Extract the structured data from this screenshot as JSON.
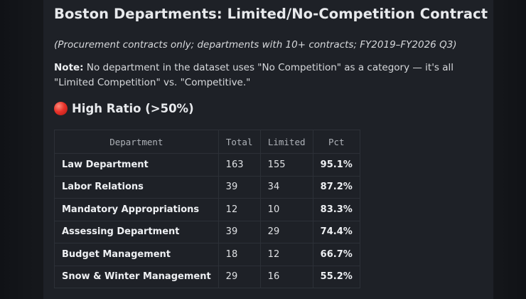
{
  "title": "Boston Departments: Limited/No-Competition Contract Ratio",
  "subtitle": "(Procurement contracts only; departments with 10+ contracts; FY2019–FY2026 Q3)",
  "note": {
    "label": "Note:",
    "text": " No department in the dataset uses \"No Competition\" as a category — it's all \"Limited Competition\" vs. \"Competitive.\""
  },
  "section": {
    "icon": "red-circle-icon",
    "heading": "High Ratio (>50%)"
  },
  "table": {
    "headers": [
      "Department",
      "Total",
      "Limited",
      "Pct"
    ],
    "rows": [
      {
        "department": "Law Department",
        "total": "163",
        "limited": "155",
        "pct": "95.1%"
      },
      {
        "department": "Labor Relations",
        "total": "39",
        "limited": "34",
        "pct": "87.2%"
      },
      {
        "department": "Mandatory Appropriations",
        "total": "12",
        "limited": "10",
        "pct": "83.3%"
      },
      {
        "department": "Assessing Department",
        "total": "39",
        "limited": "29",
        "pct": "74.4%"
      },
      {
        "department": "Budget Management",
        "total": "18",
        "limited": "12",
        "pct": "66.7%"
      },
      {
        "department": "Snow & Winter Management",
        "total": "29",
        "limited": "16",
        "pct": "55.2%"
      }
    ]
  },
  "colors": {
    "background": "#15171b",
    "card": "#1e2127",
    "text": "#e8eaed",
    "accent_red": "#e8322a"
  }
}
